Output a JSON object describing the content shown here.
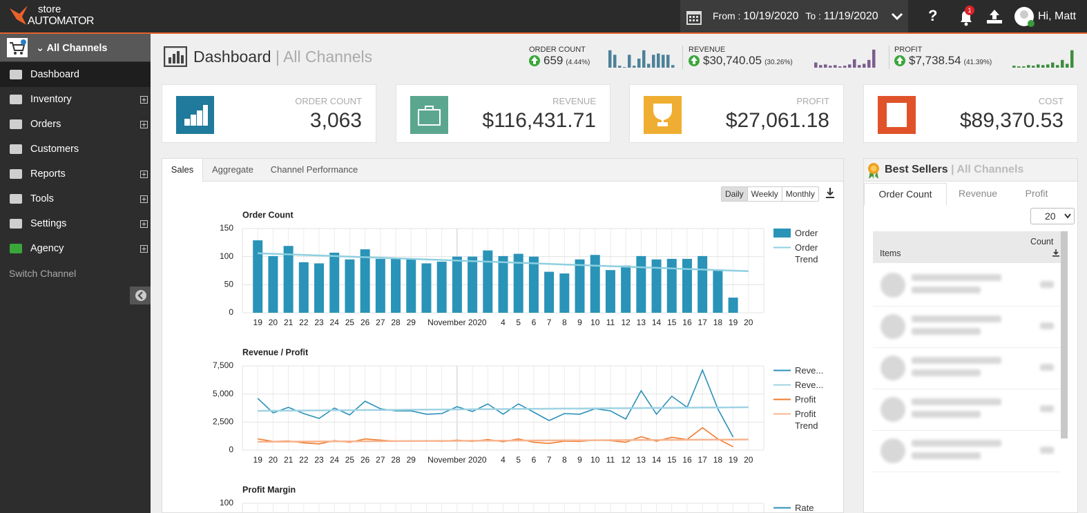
{
  "header": {
    "logo_top": "store",
    "logo_bottom": "AUTOMATOR",
    "from_label": "From :",
    "from": "10/19/2020",
    "to_label": "To :",
    "to": "11/19/2020",
    "help": "?",
    "notifications": "1",
    "user": "Hi, Matt"
  },
  "sidebar": {
    "channel": "All Channels",
    "items": [
      "Dashboard",
      "Inventory",
      "Orders",
      "Customers",
      "Reports",
      "Tools",
      "Settings",
      "Agency"
    ],
    "switch": "Switch Channel"
  },
  "page": {
    "title": "Dashboard",
    "subtitle": "| All Channels"
  },
  "stats": [
    {
      "label": "ORDER COUNT",
      "value": "659",
      "change": "(4.44%)",
      "color": "#4d8199",
      "spark": [
        27,
        20,
        3,
        1,
        20,
        3,
        14,
        27,
        6,
        20,
        22,
        20,
        20,
        4
      ]
    },
    {
      "label": "REVENUE",
      "value": "$30,740.05",
      "change": "(30.26%)",
      "color": "#7b5e8e",
      "spark": [
        8,
        4,
        5,
        3,
        4,
        2,
        3,
        5,
        13,
        4,
        6,
        12,
        28
      ]
    },
    {
      "label": "PROFIT",
      "value": "$7,738.54",
      "change": "(41.39%)",
      "color": "#3e8c3e",
      "spark": [
        3,
        2,
        2,
        4,
        3,
        5,
        4,
        5,
        8,
        4,
        12,
        6,
        27
      ]
    }
  ],
  "cards": [
    {
      "label": "ORDER COUNT",
      "value": "3,063",
      "color": "#1f7a9c"
    },
    {
      "label": "REVENUE",
      "value": "$116,431.71",
      "color": "#5ba68f"
    },
    {
      "label": "PROFIT",
      "value": "$27,061.18",
      "color": "#efae31"
    },
    {
      "label": "COST",
      "value": "$89,370.53",
      "color": "#e0532a"
    }
  ],
  "tabs": [
    "Sales",
    "Aggregate",
    "Channel Performance"
  ],
  "periods": [
    "Daily",
    "Weekly",
    "Monthly"
  ],
  "best_sellers": {
    "title": "Best Sellers",
    "subtitle": "| All Channels",
    "tabs": [
      "Order Count",
      "Revenue",
      "Profit"
    ],
    "page_size": "20",
    "col_items": "Items",
    "col_count": "Count"
  },
  "chart_data": [
    {
      "type": "bar",
      "title": "Order Count",
      "categories": [
        "19",
        "20",
        "21",
        "22",
        "23",
        "24",
        "25",
        "26",
        "27",
        "28",
        "29",
        null,
        null,
        "November 2020",
        null,
        null,
        "4",
        "5",
        "6",
        "7",
        "8",
        "9",
        "10",
        "11",
        "12",
        "13",
        "14",
        "15",
        "16",
        "17",
        "18",
        "19",
        "20"
      ],
      "ylim": [
        0,
        150
      ],
      "yticks": [
        0,
        50,
        100,
        150
      ],
      "grid": true,
      "series": [
        {
          "name": "Order",
          "type": "bar",
          "color": "#2a93b8",
          "values": [
            129,
            101,
            119,
            90,
            88,
            107,
            95,
            113,
            96,
            96,
            96,
            88,
            91,
            100,
            100,
            111,
            101,
            105,
            100,
            73,
            70,
            95,
            103,
            76,
            84,
            101,
            95,
            96,
            96,
            101,
            77,
            27,
            null
          ]
        },
        {
          "name": "Order Trend",
          "type": "line",
          "color": "#8ecfe0",
          "values": [
            106,
            105,
            104,
            103,
            102,
            101,
            100,
            99,
            98,
            97,
            96,
            95,
            94,
            93,
            92,
            91,
            90,
            89,
            88,
            87,
            86,
            85,
            84,
            83,
            82,
            81,
            80,
            79,
            78,
            77,
            76,
            75,
            74
          ]
        }
      ]
    },
    {
      "type": "line",
      "title": "Revenue / Profit",
      "categories": [
        "19",
        "20",
        "21",
        "22",
        "23",
        "24",
        "25",
        "26",
        "27",
        "28",
        "29",
        null,
        null,
        "November 2020",
        null,
        null,
        "4",
        "5",
        "6",
        "7",
        "8",
        "9",
        "10",
        "11",
        "12",
        "13",
        "14",
        "15",
        "16",
        "17",
        "18",
        "19",
        "20"
      ],
      "ylim": [
        0,
        7500
      ],
      "yticks": [
        0,
        {
          "value": 2500,
          "label": "2,500"
        },
        {
          "value": 5000,
          "label": "5,000"
        },
        {
          "value": 7500,
          "label": "7,500"
        }
      ],
      "grid": true,
      "series": [
        {
          "name": "Reve...",
          "color": "#2a8fb8",
          "values": [
            4610,
            3320,
            3810,
            3260,
            2830,
            3750,
            3140,
            4360,
            3690,
            3500,
            3500,
            3200,
            3260,
            3870,
            3440,
            4120,
            3200,
            4120,
            3380,
            2640,
            3260,
            3200,
            3690,
            3500,
            2770,
            5290,
            3200,
            4800,
            3810,
            7130,
            3690,
            1170,
            null
          ]
        },
        {
          "name": "Reve...",
          "color": "#9fd3e3",
          "values": [
            3500,
            3510,
            3520,
            3530,
            3540,
            3550,
            3560,
            3570,
            3580,
            3590,
            3600,
            3610,
            3620,
            3630,
            3640,
            3650,
            3660,
            3670,
            3680,
            3690,
            3700,
            3710,
            3720,
            3730,
            3740,
            3750,
            3760,
            3770,
            3780,
            3790,
            3800,
            3810,
            3820
          ]
        },
        {
          "name": "Profit",
          "color": "#f07a2a",
          "values": [
            1000,
            780,
            820,
            650,
            560,
            850,
            700,
            1000,
            900,
            800,
            800,
            850,
            780,
            900,
            780,
            950,
            750,
            1000,
            700,
            600,
            800,
            780,
            900,
            850,
            700,
            1200,
            800,
            1150,
            950,
            2000,
            1000,
            300,
            null
          ]
        },
        {
          "name": "Profit Trend",
          "color": "#f7b48f",
          "values": [
            750,
            756,
            762,
            768,
            775,
            781,
            787,
            793,
            800,
            806,
            812,
            818,
            825,
            831,
            837,
            843,
            850,
            856,
            862,
            868,
            875,
            881,
            887,
            893,
            900,
            906,
            912,
            918,
            925,
            931,
            937,
            943,
            950
          ]
        }
      ]
    },
    {
      "type": "line",
      "title": "Profit Margin",
      "ylim": [
        0,
        100
      ],
      "yticks": [
        100
      ],
      "grid": true,
      "series": [
        {
          "name": "Rate",
          "color": "#2a8fb8"
        }
      ]
    }
  ]
}
